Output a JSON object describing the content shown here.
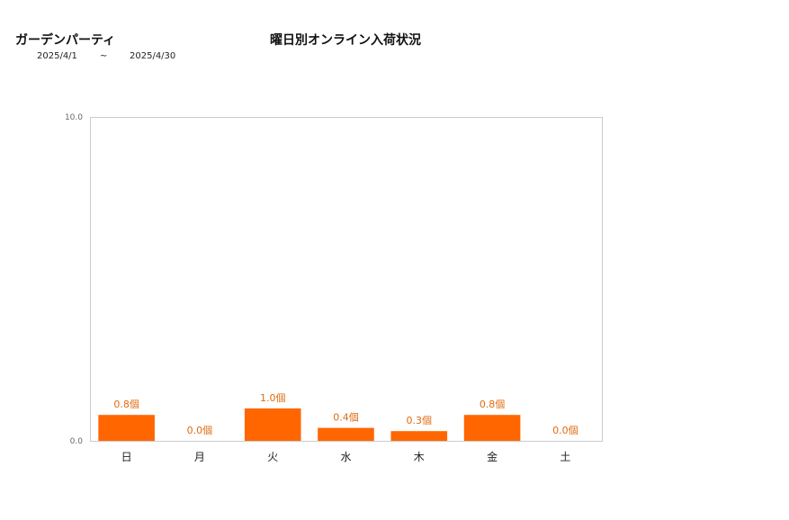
{
  "header": {
    "store_name": "ガーデンパーティ",
    "title": "曜日別オンライン入荷状況",
    "date_start": "2025/4/1",
    "date_sep": "~",
    "date_end": "2025/4/30"
  },
  "colors": {
    "bar": "#ff6600",
    "label": "#e06a10",
    "axis": "#cccccc"
  },
  "chart_data": {
    "type": "bar",
    "categories": [
      "日",
      "月",
      "火",
      "水",
      "木",
      "金",
      "土"
    ],
    "values": [
      0.8,
      0.0,
      1.0,
      0.4,
      0.3,
      0.8,
      0.0
    ],
    "data_labels": [
      "0.8個",
      "0.0個",
      "1.0個",
      "0.4個",
      "0.3個",
      "0.8個",
      "0.0個"
    ],
    "y_tick_labels": [
      "0.0",
      "10.0"
    ],
    "ylim": [
      0,
      10
    ],
    "title": "曜日別オンライン入荷状況",
    "xlabel": "",
    "ylabel": "",
    "grid": false,
    "legend": "none"
  }
}
